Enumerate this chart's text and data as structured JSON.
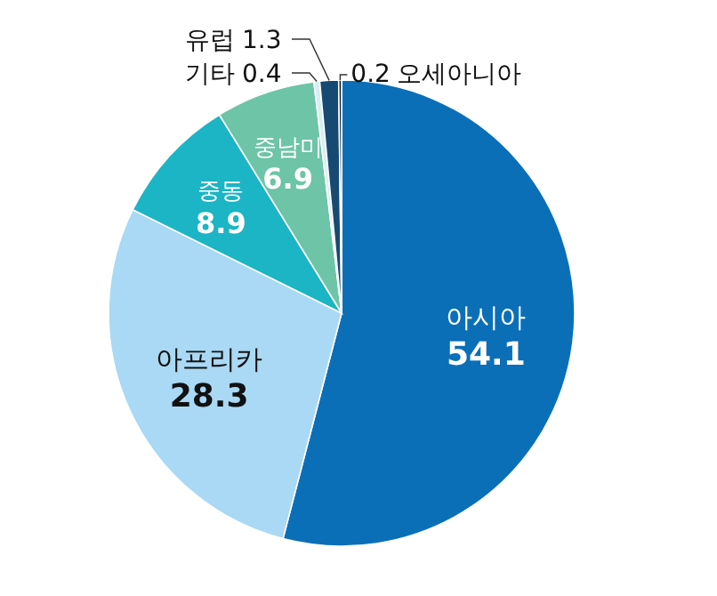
{
  "chart_data": {
    "type": "pie",
    "categories": [
      "아시아",
      "아프리카",
      "중동",
      "중남미",
      "기타",
      "유럽",
      "오세아니아"
    ],
    "values": [
      54.1,
      28.3,
      8.9,
      6.9,
      0.4,
      1.3,
      0.2
    ],
    "colors": [
      "#0b6fb8",
      "#a9d9f4",
      "#1cb5c5",
      "#6dc4a6",
      "#d6eef2",
      "#174a72",
      "#0d1f33"
    ],
    "data_labels": true
  }
}
